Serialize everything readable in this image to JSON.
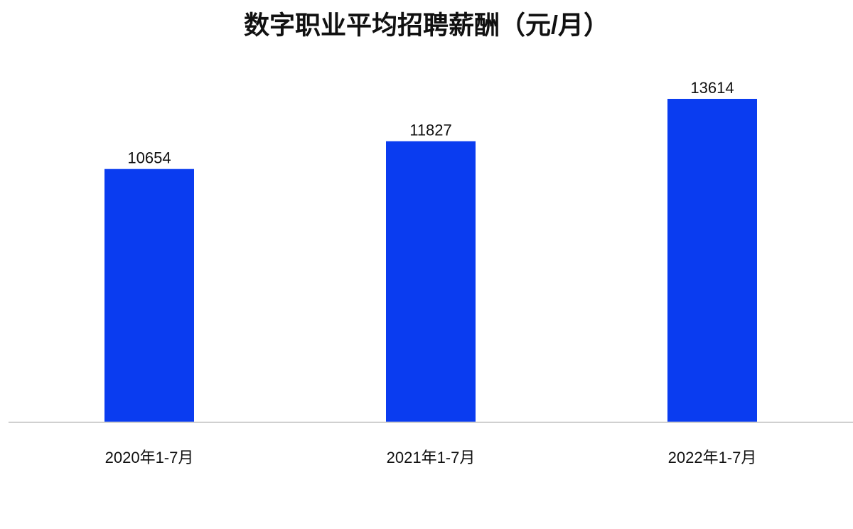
{
  "chart_data": {
    "type": "bar",
    "title": "数字职业平均招聘薪酬（元/月）",
    "categories": [
      "2020年1-7月",
      "2021年1-7月",
      "2022年1-7月"
    ],
    "values": [
      10654,
      11827,
      13614
    ],
    "color": "#0a3cf0"
  }
}
